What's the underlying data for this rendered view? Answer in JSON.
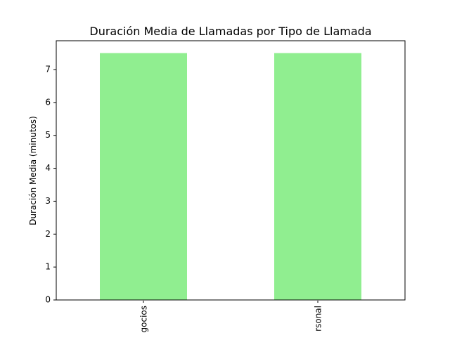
{
  "chart_data": {
    "type": "bar",
    "title": "Duración Media de Llamadas por Tipo de Llamada",
    "xlabel": "",
    "ylabel": "Duración Media (minutos)",
    "categories": [
      "Negocios",
      "Personal"
    ],
    "category_labels_visible": [
      "gocios",
      "rsonal"
    ],
    "values": [
      7.5,
      7.5
    ],
    "ylim": [
      0,
      7.875
    ],
    "yticks": [
      0,
      1,
      2,
      3,
      4,
      5,
      6,
      7
    ],
    "bar_color": "#90ee90",
    "grid": false,
    "legend": "none"
  }
}
